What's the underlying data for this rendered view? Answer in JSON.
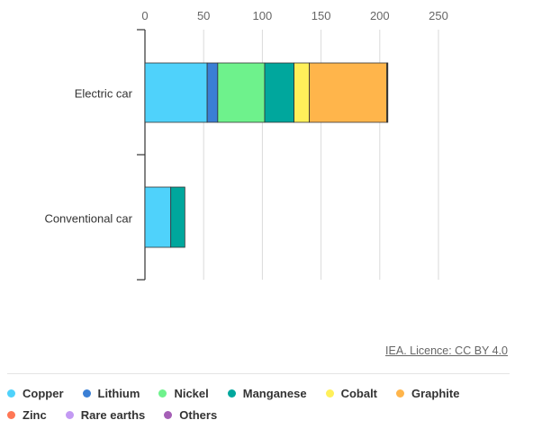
{
  "chart_data": {
    "type": "bar",
    "orientation": "horizontal",
    "stacked": true,
    "categories": [
      "Electric car",
      "Conventional car"
    ],
    "xlim": [
      0,
      250
    ],
    "ticks": [
      0,
      50,
      100,
      150,
      200,
      250
    ],
    "tick_labels": [
      "0",
      "50",
      "100",
      "150",
      "200",
      "250"
    ],
    "axis_position": "top",
    "grid": true,
    "series": [
      {
        "name": "Copper",
        "color": "#4fd2fb",
        "values": [
          53,
          22
        ]
      },
      {
        "name": "Lithium",
        "color": "#3a7fd5",
        "values": [
          9,
          0
        ]
      },
      {
        "name": "Nickel",
        "color": "#6ef28c",
        "values": [
          40,
          0
        ]
      },
      {
        "name": "Manganese",
        "color": "#00a79d",
        "values": [
          25,
          12
        ]
      },
      {
        "name": "Cobalt",
        "color": "#fff05a",
        "values": [
          13,
          0
        ]
      },
      {
        "name": "Graphite",
        "color": "#ffb54b",
        "values": [
          66,
          0
        ]
      },
      {
        "name": "Zinc",
        "color": "#ff7755",
        "values": [
          0,
          0
        ]
      },
      {
        "name": "Rare earths",
        "color": "#c39af3",
        "values": [
          0.5,
          0
        ]
      },
      {
        "name": "Others",
        "color": "#a55fb6",
        "values": [
          0.3,
          0
        ]
      }
    ]
  },
  "credit": "IEA. Licence: CC BY 4.0"
}
